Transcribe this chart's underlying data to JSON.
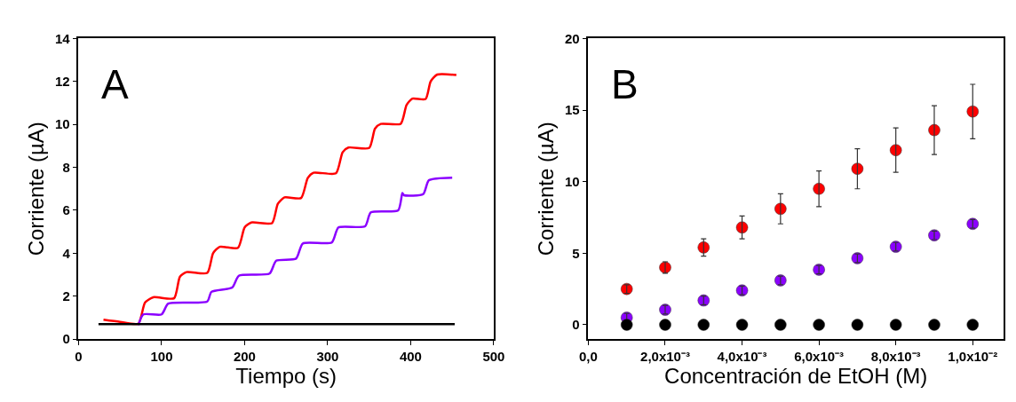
{
  "chart_data": [
    {
      "type": "line",
      "xlabel": "Tiempo (s)",
      "ylabel": "Corriente (µA)",
      "annotations": [
        "A"
      ],
      "xlim": [
        0,
        500
      ],
      "ylim": [
        0,
        14
      ],
      "xticks": [
        0,
        100,
        200,
        300,
        400,
        500
      ],
      "yticks": [
        0,
        2,
        4,
        6,
        8,
        10,
        12,
        14
      ],
      "line_style": "solid",
      "series": [
        {
          "color": "#ff0000",
          "x": [
            30,
            50,
            72,
            80,
            90,
            115,
            122,
            130,
            155,
            162,
            170,
            192,
            200,
            208,
            233,
            240,
            248,
            268,
            276,
            283,
            310,
            318,
            325,
            350,
            357,
            364,
            388,
            395,
            402,
            418,
            424,
            432,
            455
          ],
          "values": [
            0.9,
            0.8,
            0.72,
            1.7,
            1.95,
            1.9,
            2.9,
            3.12,
            3.08,
            4.0,
            4.3,
            4.25,
            5.2,
            5.43,
            5.4,
            6.3,
            6.6,
            6.57,
            7.5,
            7.75,
            7.72,
            8.7,
            8.92,
            8.9,
            9.8,
            10.02,
            10.03,
            10.9,
            11.2,
            11.18,
            12.0,
            12.32,
            12.3
          ]
        },
        {
          "color": "#8b00ff",
          "x": [
            72,
            78,
            100,
            108,
            155,
            160,
            185,
            193,
            230,
            238,
            262,
            270,
            305,
            313,
            345,
            352,
            385,
            390,
            392,
            415,
            422,
            450
          ],
          "values": [
            0.65,
            1.15,
            1.15,
            1.65,
            1.75,
            2.2,
            2.4,
            2.95,
            3.05,
            3.65,
            3.75,
            4.45,
            4.5,
            5.2,
            5.25,
            5.9,
            6.0,
            6.8,
            6.7,
            6.75,
            7.4,
            7.52
          ]
        },
        {
          "color": "#000000",
          "x": [
            24,
            453
          ],
          "values": [
            0.7,
            0.7
          ]
        }
      ]
    },
    {
      "type": "scatter",
      "xlabel": "Concentración de EtOH (M)",
      "ylabel": "Corriente (µA)",
      "annotations": [
        "B"
      ],
      "ylim": [
        -1,
        20
      ],
      "categories": [
        "0,0",
        null,
        "2,0x10⁻³",
        null,
        "4,0x10⁻³",
        null,
        "6,0x10⁻³",
        null,
        "8,0x10⁻³",
        null,
        "1,0x10⁻²"
      ],
      "yticks": [
        0,
        5,
        10,
        15,
        20
      ],
      "series": [
        {
          "color": "#ff0000",
          "values": [
            null,
            2.5,
            4.0,
            5.4,
            6.8,
            8.1,
            9.5,
            10.9,
            12.2,
            13.6,
            14.9
          ],
          "errors": [
            null,
            0.3,
            0.4,
            0.6,
            0.8,
            1.05,
            1.25,
            1.4,
            1.55,
            1.7,
            1.9
          ]
        },
        {
          "color": "#8b00ff",
          "values": [
            null,
            0.5,
            1.05,
            1.7,
            2.4,
            3.1,
            3.85,
            4.65,
            5.45,
            6.25,
            7.05
          ],
          "errors": [
            null,
            0.3,
            0.3,
            0.3,
            0.3,
            0.3,
            0.3,
            0.3,
            0.3,
            0.3,
            0.3
          ]
        },
        {
          "color": "#000000",
          "values": [
            null,
            0,
            0,
            0,
            0,
            0,
            0,
            0,
            0,
            0,
            0
          ]
        }
      ]
    }
  ]
}
